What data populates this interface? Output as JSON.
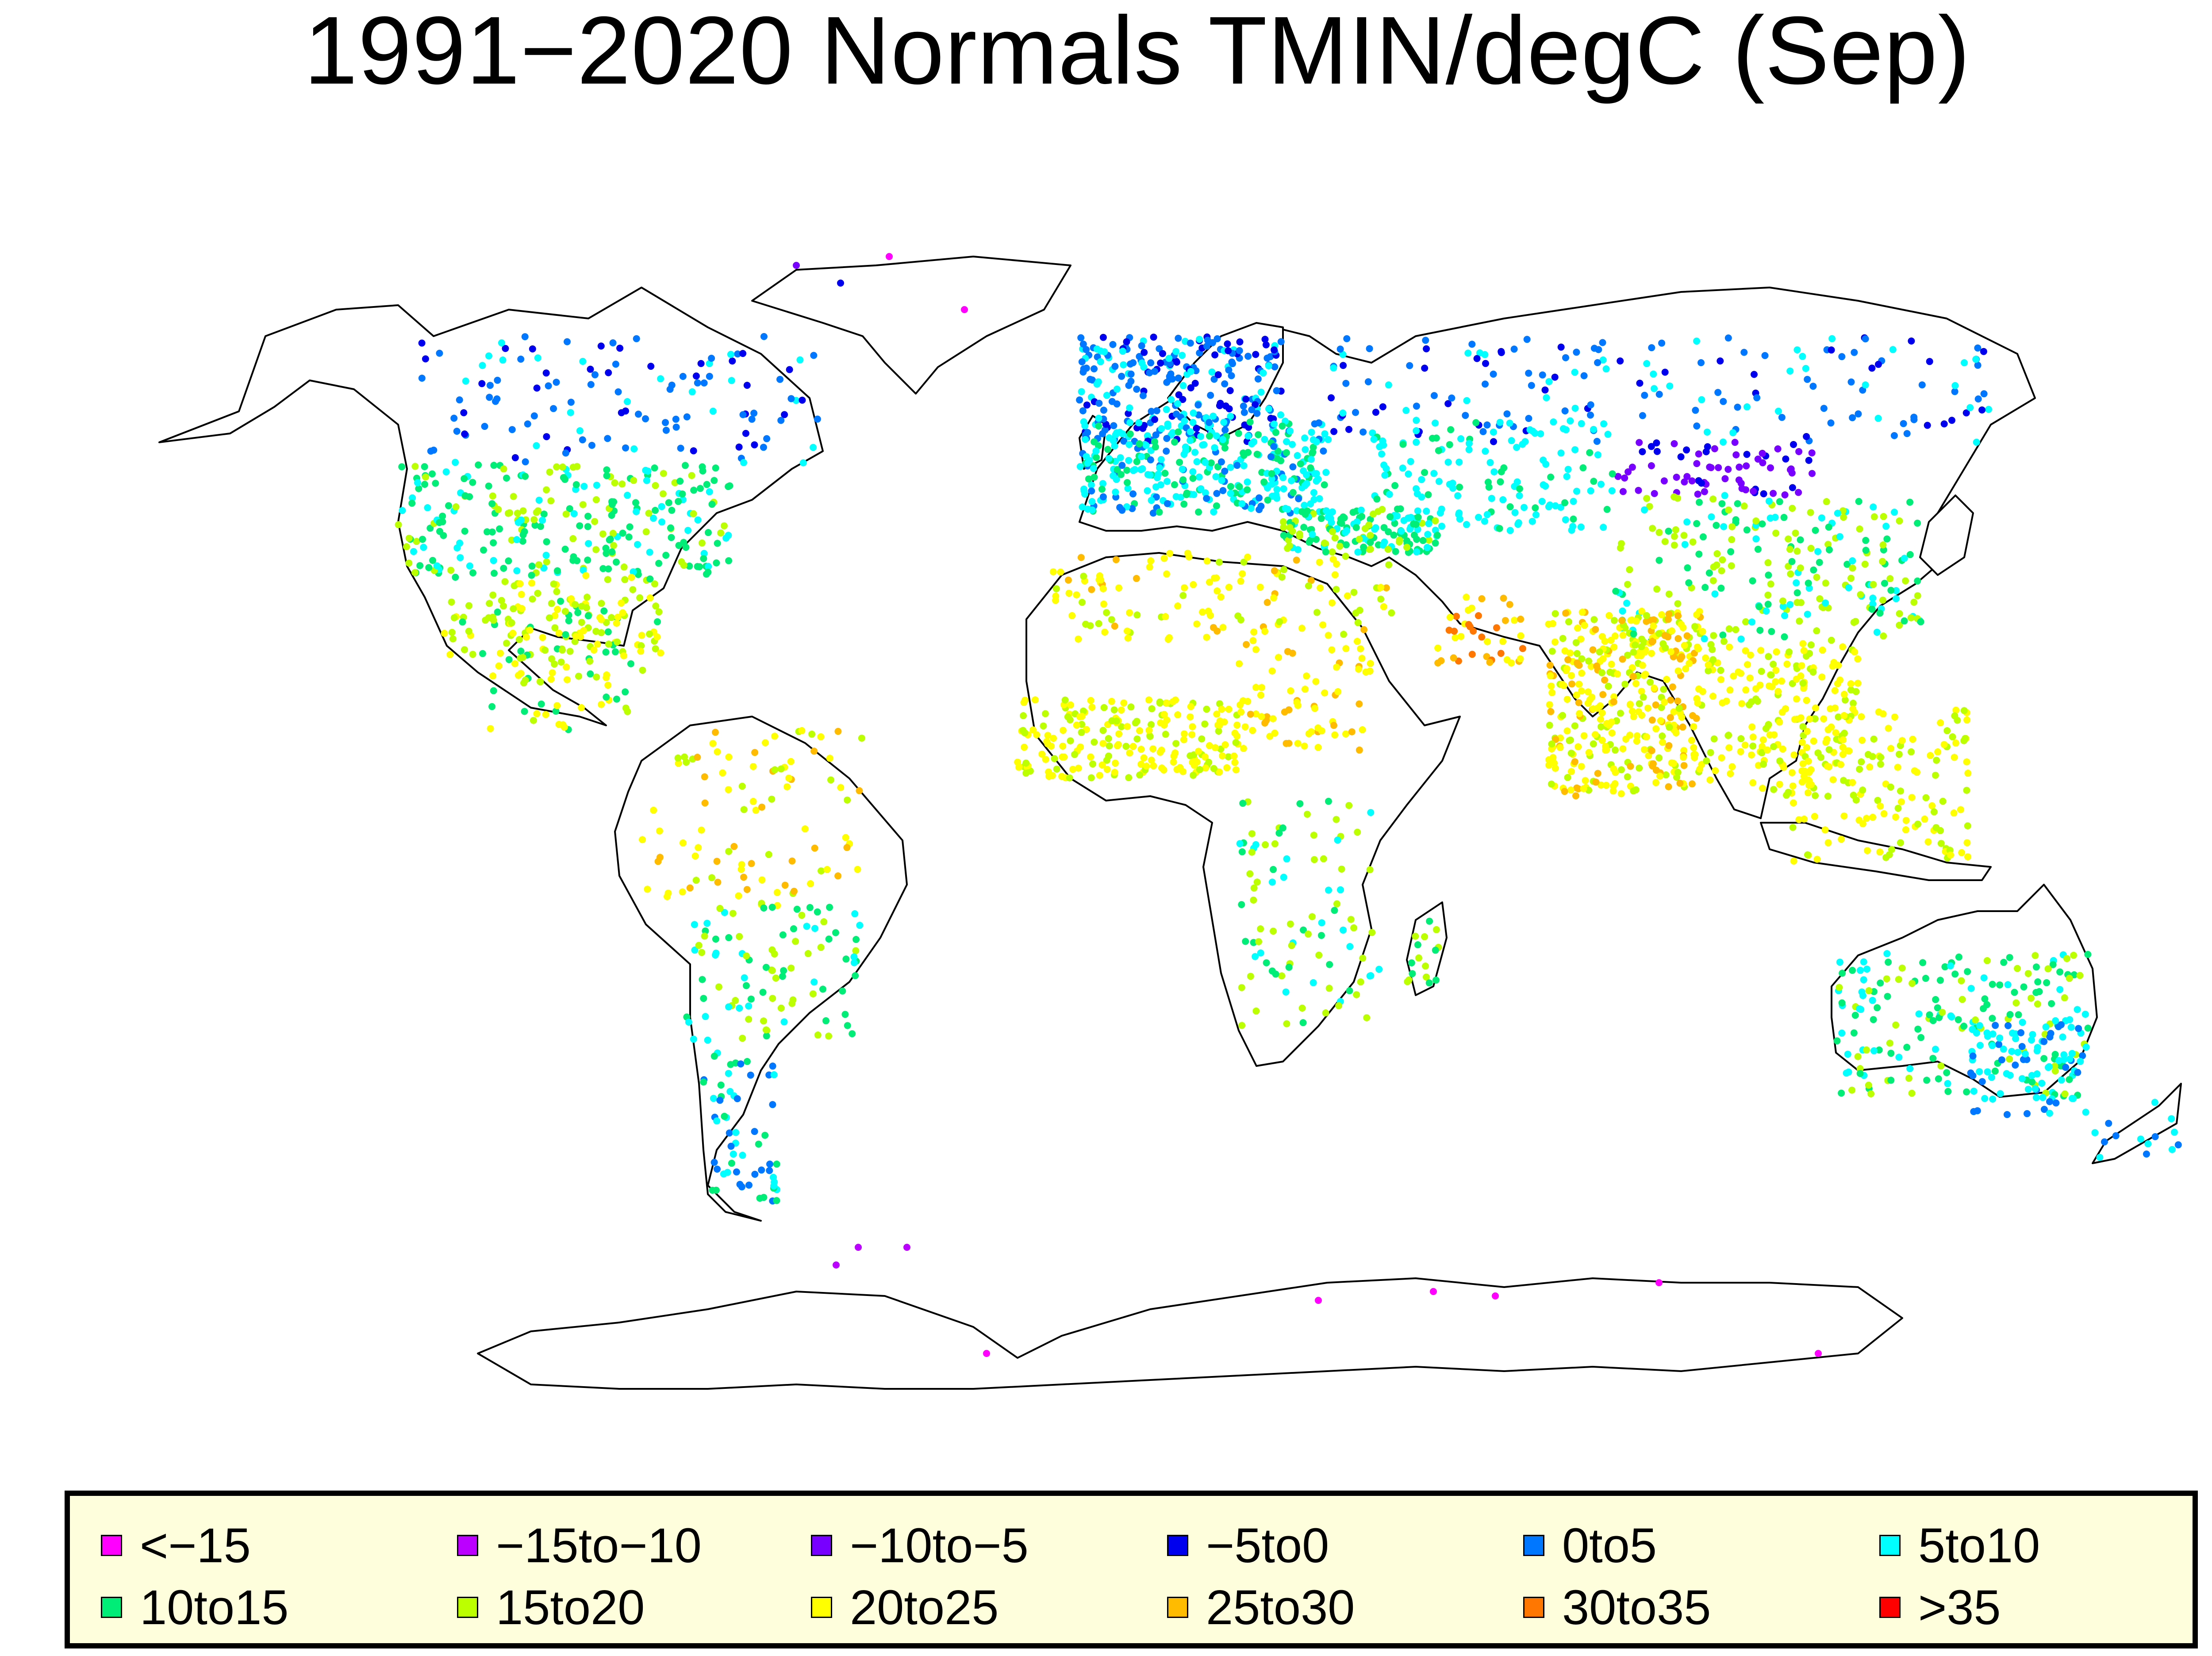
{
  "title": "1991−2020 Normals TMIN/degC  (Sep)",
  "map": {
    "land_color": "#ffffff",
    "outline_color": "#000000",
    "station_marker": "dot"
  },
  "legend": {
    "items": [
      {
        "label": "<−15",
        "color": "#ff00ff"
      },
      {
        "label": "−15to−10",
        "color": "#bb00ff"
      },
      {
        "label": "−10to−5",
        "color": "#7700ff"
      },
      {
        "label": "−5to0",
        "color": "#0000ee"
      },
      {
        "label": "0to5",
        "color": "#0077ff"
      },
      {
        "label": "5to10",
        "color": "#00ffff"
      },
      {
        "label": "10to15",
        "color": "#00ee77"
      },
      {
        "label": "15to20",
        "color": "#bbff00"
      },
      {
        "label": "20to25",
        "color": "#ffff00"
      },
      {
        "label": "25to30",
        "color": "#ffbb00"
      },
      {
        "label": "30to35",
        "color": "#ff7700"
      },
      {
        "label": ">35",
        "color": "#ff0000"
      }
    ]
  }
}
